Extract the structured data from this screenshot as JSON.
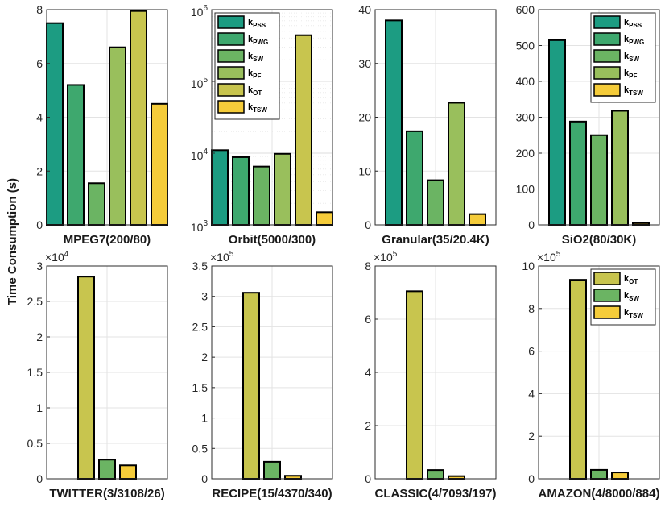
{
  "figure": {
    "ylabel": "Time Consumption (s)"
  },
  "colors": {
    "k_PSS": "#1c9c82",
    "k_PWG": "#3ea86e",
    "k_SW": "#6bb463",
    "k_PF": "#99bf5c",
    "k_OT": "#c8c54e",
    "k_TSW": "#f5cc3a"
  },
  "chart_data": [
    {
      "type": "bar",
      "title": "MPEG7(200/80)",
      "scale": "linear",
      "ylim": [
        0,
        8
      ],
      "yticks": [
        0,
        2,
        4,
        6,
        8
      ],
      "ytick_labels": [
        "0",
        "2",
        "4",
        "6",
        "8"
      ],
      "exponent_label": "",
      "series": [
        {
          "name": "k_PSS",
          "value": 7.5
        },
        {
          "name": "k_PWG",
          "value": 5.2
        },
        {
          "name": "k_SW",
          "value": 1.55
        },
        {
          "name": "k_PF",
          "value": 6.6
        },
        {
          "name": "k_OT",
          "value": 7.95
        },
        {
          "name": "k_TSW",
          "value": 4.5
        }
      ],
      "legend": null
    },
    {
      "type": "bar",
      "title": "Orbit(5000/300)",
      "scale": "log",
      "ylim": [
        1000,
        1000000
      ],
      "yticks": [
        1000,
        10000,
        100000,
        1000000
      ],
      "ytick_labels": [
        {
          "base": "10",
          "exp": "3"
        },
        {
          "base": "10",
          "exp": "4"
        },
        {
          "base": "10",
          "exp": "5"
        },
        {
          "base": "10",
          "exp": "6"
        }
      ],
      "exponent_label": "",
      "series": [
        {
          "name": "k_PSS",
          "value": 11000
        },
        {
          "name": "k_PWG",
          "value": 8800
        },
        {
          "name": "k_SW",
          "value": 6500
        },
        {
          "name": "k_PF",
          "value": 9800
        },
        {
          "name": "k_OT",
          "value": 440000
        },
        {
          "name": "k_TSW",
          "value": 1500
        }
      ],
      "legend": {
        "placement": "top-left",
        "entries": [
          {
            "series": "k_PSS",
            "main": "k",
            "sub": "PSS"
          },
          {
            "series": "k_PWG",
            "main": "k",
            "sub": "PWG"
          },
          {
            "series": "k_SW",
            "main": "k",
            "sub": "SW"
          },
          {
            "series": "k_PF",
            "main": "k",
            "sub": "PF"
          },
          {
            "series": "k_OT",
            "main": "k",
            "sub": "OT"
          },
          {
            "series": "k_TSW",
            "main": "k",
            "sub": "TSW"
          }
        ]
      }
    },
    {
      "type": "bar",
      "title": "Granular(35/20.4K)",
      "scale": "linear",
      "ylim": [
        0,
        40
      ],
      "yticks": [
        0,
        10,
        20,
        30,
        40
      ],
      "ytick_labels": [
        "0",
        "10",
        "20",
        "30",
        "40"
      ],
      "exponent_label": "",
      "series": [
        {
          "name": "k_PSS",
          "value": 38
        },
        {
          "name": "k_PWG",
          "value": 17.4
        },
        {
          "name": "k_SW",
          "value": 8.3
        },
        {
          "name": "k_PF",
          "value": 22.7
        },
        {
          "name": "k_TSW",
          "value": 2
        }
      ],
      "legend": null
    },
    {
      "type": "bar",
      "title": "SiO2(80/30K)",
      "scale": "linear",
      "ylim": [
        0,
        600
      ],
      "yticks": [
        0,
        100,
        200,
        300,
        400,
        500,
        600
      ],
      "ytick_labels": [
        "0",
        "100",
        "200",
        "300",
        "400",
        "500",
        "600"
      ],
      "exponent_label": "",
      "series": [
        {
          "name": "k_PSS",
          "value": 515
        },
        {
          "name": "k_PWG",
          "value": 288
        },
        {
          "name": "k_SW",
          "value": 250
        },
        {
          "name": "k_PF",
          "value": 318
        },
        {
          "name": "k_TSW",
          "value": 5
        }
      ],
      "legend": {
        "placement": "top-right",
        "entries": [
          {
            "series": "k_PSS",
            "main": "k",
            "sub": "PSS"
          },
          {
            "series": "k_PWG",
            "main": "k",
            "sub": "PWG"
          },
          {
            "series": "k_SW",
            "main": "k",
            "sub": "SW"
          },
          {
            "series": "k_PF",
            "main": "k",
            "sub": "PF"
          },
          {
            "series": "k_TSW",
            "main": "k",
            "sub": "TSW"
          }
        ]
      }
    },
    {
      "type": "bar",
      "title": "TWITTER(3/3108/26)",
      "scale": "linear",
      "ylim": [
        0,
        30000
      ],
      "yticks": [
        0,
        5000,
        10000,
        15000,
        20000,
        25000,
        30000
      ],
      "ytick_labels": [
        "0",
        "0.5",
        "1",
        "1.5",
        "2",
        "2.5",
        "3"
      ],
      "exponent_label": {
        "base": "×10",
        "exp": "4"
      },
      "series": [
        {
          "name": "k_OT",
          "value": 28500
        },
        {
          "name": "k_SW",
          "value": 2700
        },
        {
          "name": "k_TSW",
          "value": 1900
        }
      ],
      "legend": null
    },
    {
      "type": "bar",
      "title": "RECIPE(15/4370/340)",
      "scale": "linear",
      "ylim": [
        0,
        350000
      ],
      "yticks": [
        0,
        50000,
        100000,
        150000,
        200000,
        250000,
        300000,
        350000
      ],
      "ytick_labels": [
        "0",
        "0.5",
        "1",
        "1.5",
        "2",
        "2.5",
        "3",
        "3.5"
      ],
      "exponent_label": {
        "base": "×10",
        "exp": "5"
      },
      "series": [
        {
          "name": "k_OT",
          "value": 306000
        },
        {
          "name": "k_SW",
          "value": 28000
        },
        {
          "name": "k_TSW",
          "value": 5000
        }
      ],
      "legend": null
    },
    {
      "type": "bar",
      "title": "CLASSIC(4/7093/197)",
      "scale": "linear",
      "ylim": [
        0,
        800000
      ],
      "yticks": [
        0,
        200000,
        400000,
        600000,
        800000
      ],
      "ytick_labels": [
        "0",
        "2",
        "4",
        "6",
        "8"
      ],
      "exponent_label": {
        "base": "×10",
        "exp": "5"
      },
      "series": [
        {
          "name": "k_OT",
          "value": 705000
        },
        {
          "name": "k_SW",
          "value": 33000
        },
        {
          "name": "k_TSW",
          "value": 10000
        }
      ],
      "legend": null
    },
    {
      "type": "bar",
      "title": "AMAZON(4/8000/884)",
      "scale": "linear",
      "ylim": [
        0,
        1000000
      ],
      "yticks": [
        0,
        200000,
        400000,
        600000,
        800000,
        1000000
      ],
      "ytick_labels": [
        "0",
        "2",
        "4",
        "6",
        "8",
        "10"
      ],
      "exponent_label": {
        "base": "×10",
        "exp": "5"
      },
      "series": [
        {
          "name": "k_OT",
          "value": 935000
        },
        {
          "name": "k_SW",
          "value": 42000
        },
        {
          "name": "k_TSW",
          "value": 30000
        }
      ],
      "legend": {
        "placement": "top-right",
        "entries": [
          {
            "series": "k_OT",
            "main": "k",
            "sub": "OT"
          },
          {
            "series": "k_SW",
            "main": "k",
            "sub": "SW"
          },
          {
            "series": "k_TSW",
            "main": "k",
            "sub": "TSW"
          }
        ]
      }
    }
  ]
}
